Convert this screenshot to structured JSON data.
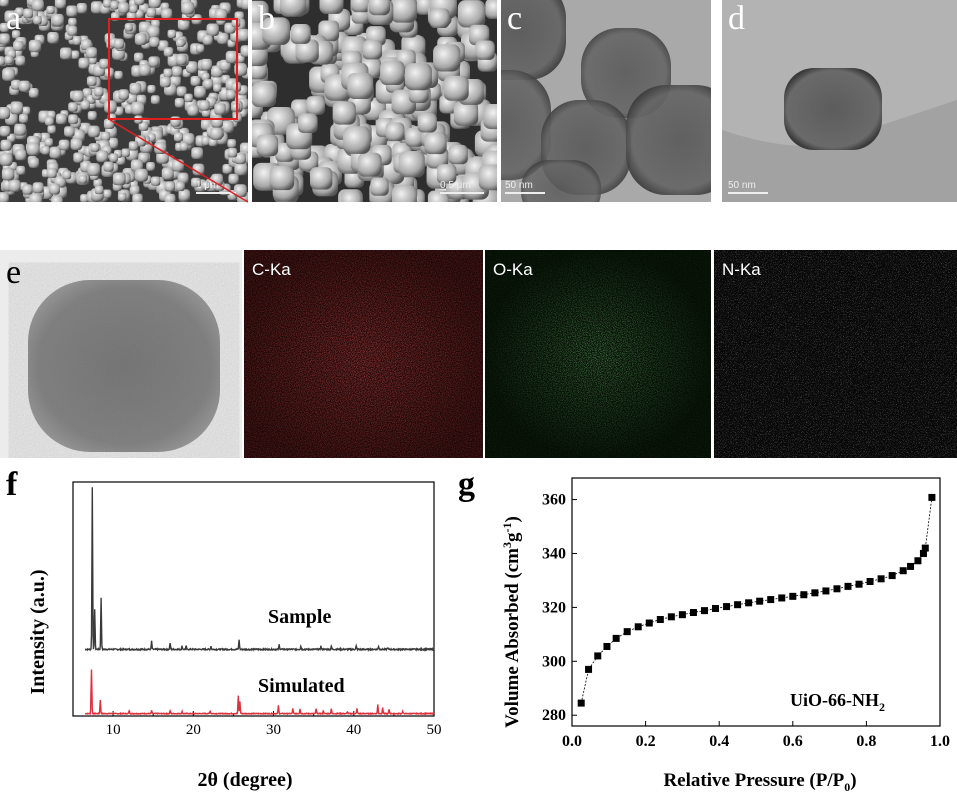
{
  "panels": {
    "a": {
      "label": "a",
      "scale": "1 μm"
    },
    "b": {
      "label": "b",
      "scale": "0.5 μm"
    },
    "c": {
      "label": "c",
      "scale": "50 nm"
    },
    "d": {
      "label": "d",
      "scale": "50 nm"
    },
    "e": {
      "label": "e"
    },
    "f": {
      "label": "f"
    },
    "g": {
      "label": "g"
    }
  },
  "eds_maps": [
    {
      "label": "C-Ka",
      "color": "#d11a1a"
    },
    {
      "label": "O-Ka",
      "color": "#39b339"
    },
    {
      "label": "N-Ka",
      "color": "#d6d6d6"
    }
  ],
  "chart_data": [
    {
      "type": "line",
      "panel": "f",
      "xlabel": "2θ (degree)",
      "ylabel": "Intensity (a.u.)",
      "xlim": [
        5,
        50
      ],
      "xticks": [
        10,
        20,
        30,
        40,
        50
      ],
      "series": [
        {
          "name": "Sample",
          "color": "#3a3a3a",
          "peaks": [
            [
              7.4,
              100
            ],
            [
              7.7,
              25
            ],
            [
              8.5,
              32
            ],
            [
              14.8,
              5
            ],
            [
              17.1,
              4
            ],
            [
              18.6,
              2
            ],
            [
              19.1,
              2
            ],
            [
              22.2,
              2
            ],
            [
              25.7,
              6
            ],
            [
              30.7,
              3
            ],
            [
              33.4,
              2
            ],
            [
              35.9,
              2
            ],
            [
              37.2,
              2
            ],
            [
              40.3,
              2
            ],
            [
              43.1,
              2
            ],
            [
              44.2,
              1
            ]
          ]
        },
        {
          "name": "Simulated",
          "color": "#e0303a",
          "peaks": [
            [
              7.3,
              44
            ],
            [
              8.4,
              14
            ],
            [
              12.0,
              3
            ],
            [
              14.8,
              3
            ],
            [
              17.1,
              3
            ],
            [
              18.6,
              2
            ],
            [
              22.1,
              3
            ],
            [
              25.6,
              18
            ],
            [
              25.8,
              12
            ],
            [
              30.6,
              8
            ],
            [
              32.4,
              5
            ],
            [
              33.3,
              5
            ],
            [
              35.3,
              5
            ],
            [
              36.2,
              3
            ],
            [
              37.2,
              5
            ],
            [
              39.2,
              2
            ],
            [
              40.4,
              5
            ],
            [
              43.0,
              9
            ],
            [
              43.6,
              6
            ],
            [
              44.4,
              4
            ],
            [
              46.1,
              2
            ]
          ]
        }
      ]
    },
    {
      "type": "line",
      "panel": "g",
      "xlabel": "Relative Pressure (P/P0)",
      "xlabel_main": "Relative Pressure (P/P",
      "xlabel_sub": "0",
      "xlabel_end": ")",
      "ylabel": "Volume Absorbed (cm3g-1)",
      "ylabel_main": "Volume Absorbed (cm",
      "ylabel_sup1": "3",
      "ylabel_mid": "g",
      "ylabel_sup2": "-1",
      "ylabel_end": ")",
      "annotation": "UiO-66-NH2",
      "annotation_main": "UiO-66-NH",
      "annotation_sub": "2",
      "xlim": [
        0.0,
        1.0
      ],
      "ylim": [
        276,
        368
      ],
      "xticks": [
        0.0,
        0.2,
        0.4,
        0.6,
        0.8,
        1.0
      ],
      "yticks": [
        280,
        300,
        320,
        340,
        360
      ],
      "series": [
        {
          "name": "UiO-66-NH2",
          "x": [
            0.025,
            0.045,
            0.07,
            0.095,
            0.12,
            0.15,
            0.18,
            0.21,
            0.24,
            0.27,
            0.3,
            0.33,
            0.36,
            0.39,
            0.42,
            0.45,
            0.48,
            0.51,
            0.54,
            0.57,
            0.6,
            0.63,
            0.66,
            0.69,
            0.72,
            0.75,
            0.78,
            0.81,
            0.84,
            0.87,
            0.9,
            0.92,
            0.94,
            0.955,
            0.96,
            0.978
          ],
          "y": [
            284.5,
            297,
            302,
            305.5,
            308.5,
            311,
            312.8,
            314.2,
            315.5,
            316.5,
            317.3,
            318.1,
            318.8,
            319.6,
            320.3,
            321.0,
            321.7,
            322.3,
            322.9,
            323.5,
            324.1,
            324.7,
            325.4,
            326.1,
            326.9,
            327.8,
            328.6,
            329.6,
            330.6,
            331.8,
            333.6,
            335.2,
            337.3,
            340.0,
            342.0,
            360.8
          ]
        }
      ]
    }
  ]
}
